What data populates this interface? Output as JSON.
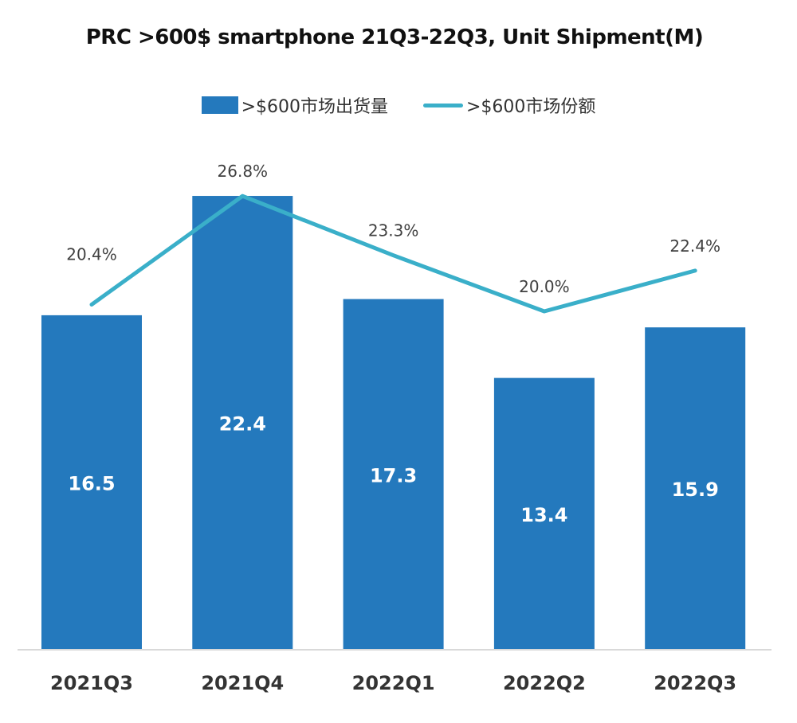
{
  "chart_data": {
    "type": "bar",
    "title": "PRC >600$ smartphone 21Q3-22Q3, Unit Shipment(M)",
    "categories": [
      "2021Q3",
      "2021Q4",
      "2022Q1",
      "2022Q2",
      "2022Q3"
    ],
    "series": [
      {
        "name": ">$600市场出货量",
        "type": "bar",
        "values": [
          16.5,
          22.4,
          17.3,
          13.4,
          15.9
        ],
        "labels": [
          "16.5",
          "22.4",
          "17.3",
          "13.4",
          "15.9"
        ],
        "color": "#2479bd"
      },
      {
        "name": ">$600市场份额",
        "type": "line",
        "values": [
          20.4,
          26.8,
          23.3,
          20.0,
          22.4
        ],
        "labels": [
          "20.4%",
          "26.8%",
          "23.3%",
          "20.0%",
          "22.4%"
        ],
        "color": "#3aafc9"
      }
    ],
    "xlabel": "",
    "ylabel": "",
    "grid": false,
    "legend": "top-center"
  }
}
